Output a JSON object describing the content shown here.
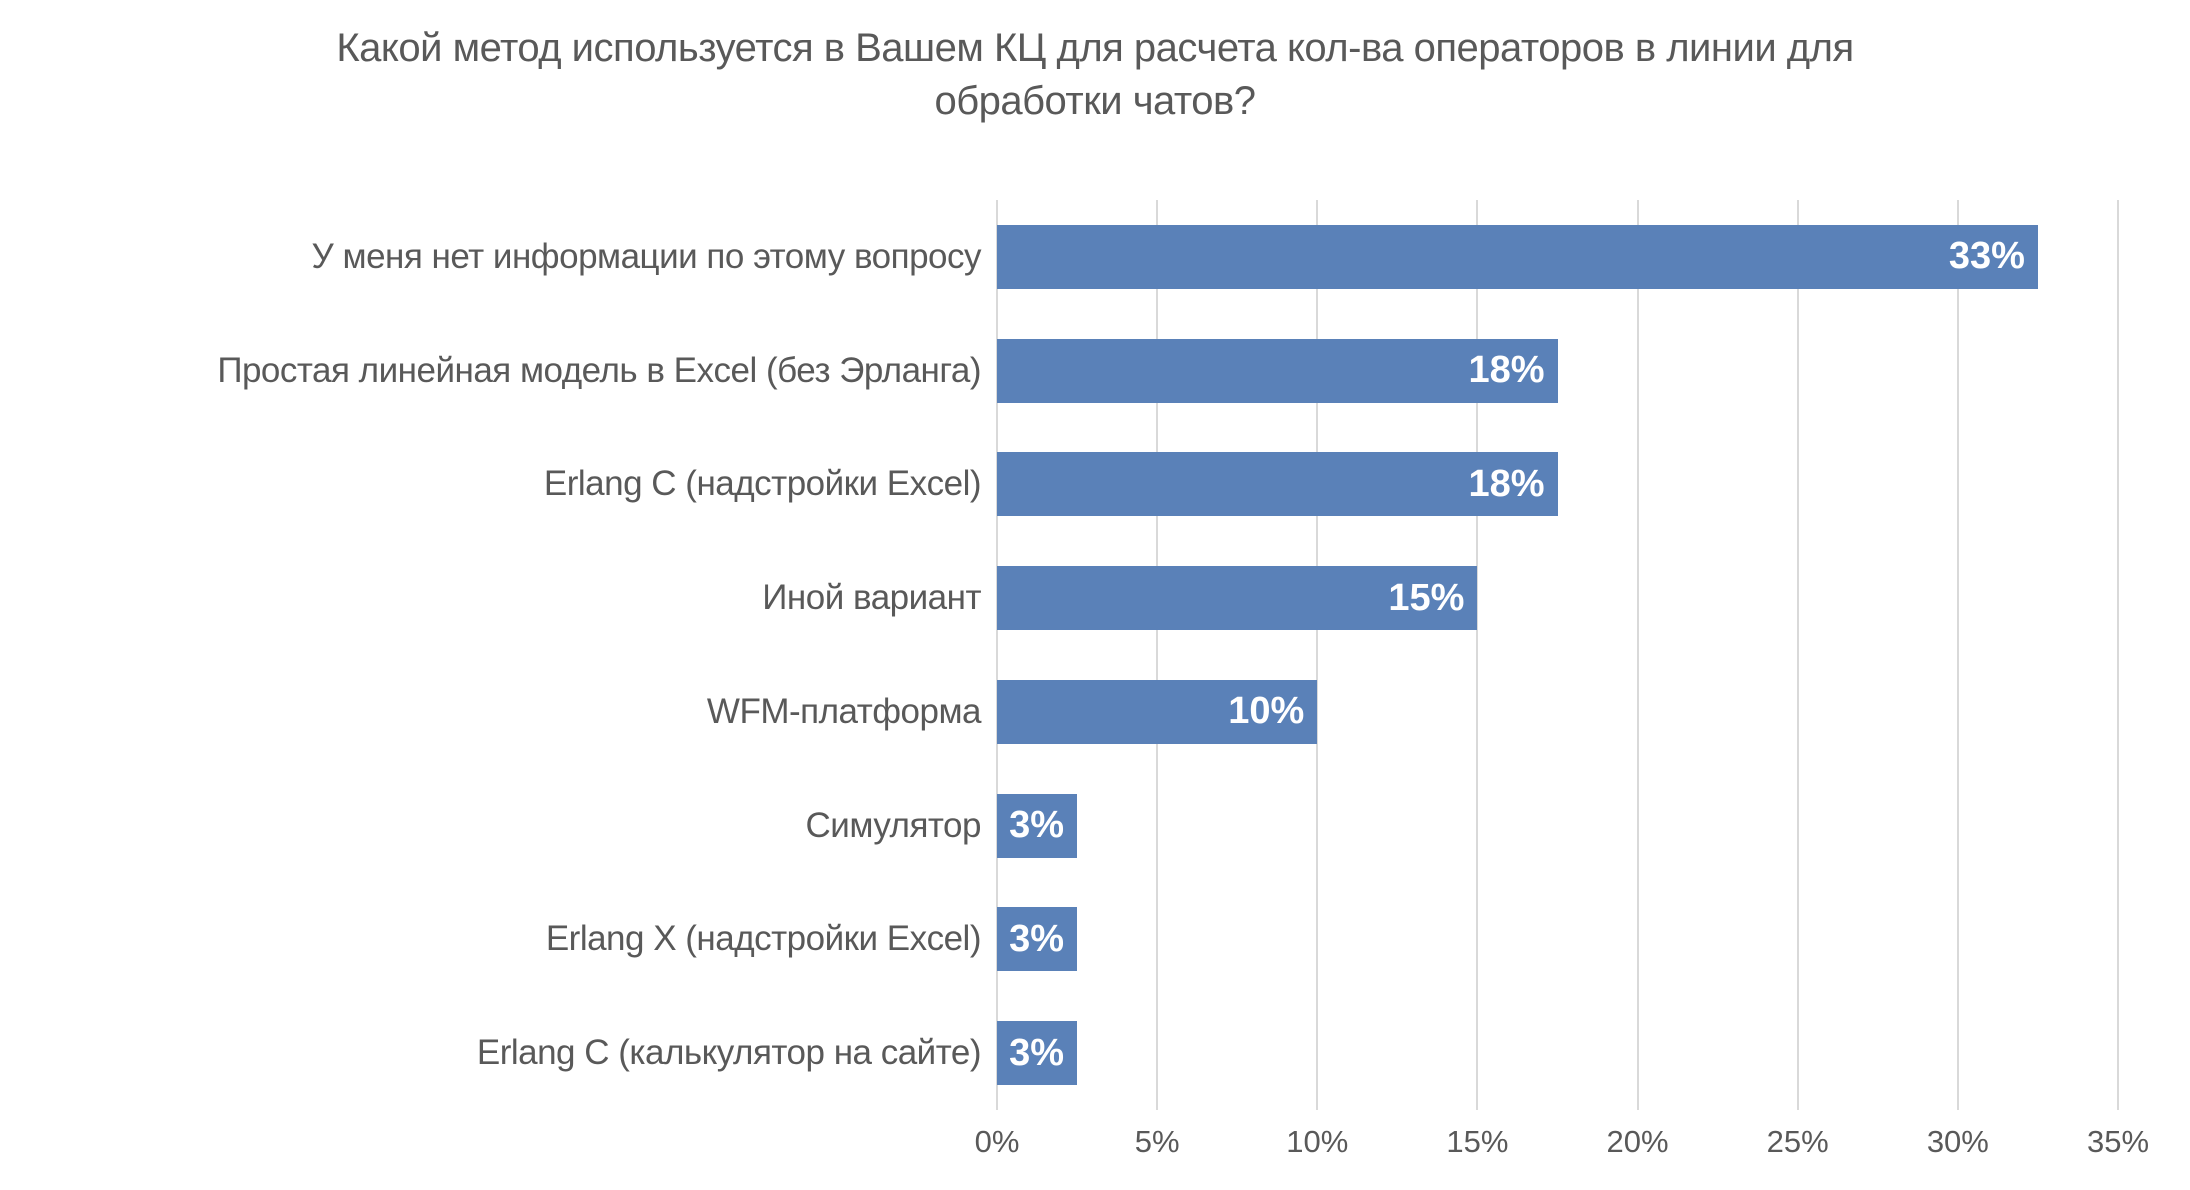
{
  "title": "Какой метод используется в Вашем КЦ для расчета кол-ва операторов в линии для обработки чатов?",
  "colors": {
    "bar": "#5A81B8",
    "gridline": "#D9D9D9",
    "axis_line": "#D9D9D9",
    "text": "#595959",
    "data_label": "#FFFFFF",
    "background": "#FFFFFF"
  },
  "chart_data": {
    "type": "bar",
    "orientation": "horizontal",
    "title": "Какой метод используется в Вашем КЦ для расчета кол-ва операторов в линии для обработки чатов?",
    "categories": [
      "У меня нет информации по этому вопросу",
      "Простая линейная модель в Excel (без Эрланга)",
      "Erlang C (надстройки Excel)",
      "Иной вариант",
      "WFM-платформа",
      "Симулятор",
      "Erlang X (надстройки Excel)",
      "Erlang C (калькулятор на сайте)"
    ],
    "values": [
      32.5,
      17.5,
      17.5,
      15,
      10,
      2.5,
      2.5,
      2.5
    ],
    "data_labels": [
      "33%",
      "18%",
      "18%",
      "15%",
      "10%",
      "3%",
      "3%",
      "3%"
    ],
    "x_ticks": [
      "0%",
      "5%",
      "10%",
      "15%",
      "20%",
      "25%",
      "30%",
      "35%"
    ],
    "xlim": [
      0,
      35
    ],
    "xlabel": "",
    "ylabel": "",
    "grid": "vertical",
    "legend": "none",
    "data_label_position": "inside-end"
  }
}
